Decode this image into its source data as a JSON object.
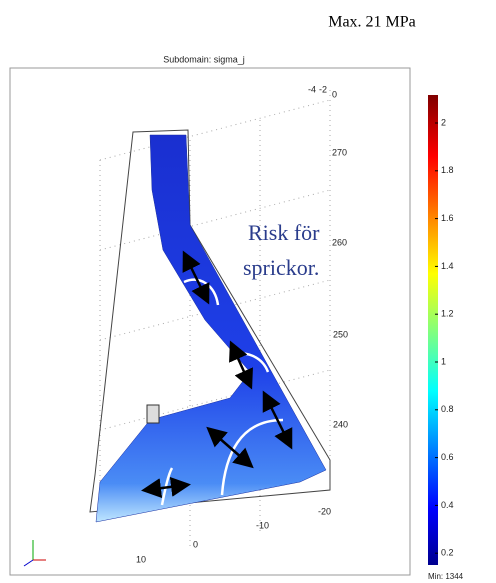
{
  "header": {
    "max_label": "Max. 21 MPa"
  },
  "plot": {
    "title": "Subdomain: sigma_j",
    "annotation": [
      "Risk för",
      "sprickor."
    ],
    "axis_labels": {
      "top": [
        -4,
        -2,
        0
      ],
      "z": [
        270,
        260,
        250,
        240
      ],
      "x": [
        -20,
        -10,
        0,
        10
      ]
    }
  },
  "colorbar": {
    "ticks": [
      2,
      1.8,
      1.6,
      1.4,
      1.2,
      1,
      0.8,
      0.6,
      0.4,
      0.2
    ],
    "min_label": "Min: 1344"
  }
}
